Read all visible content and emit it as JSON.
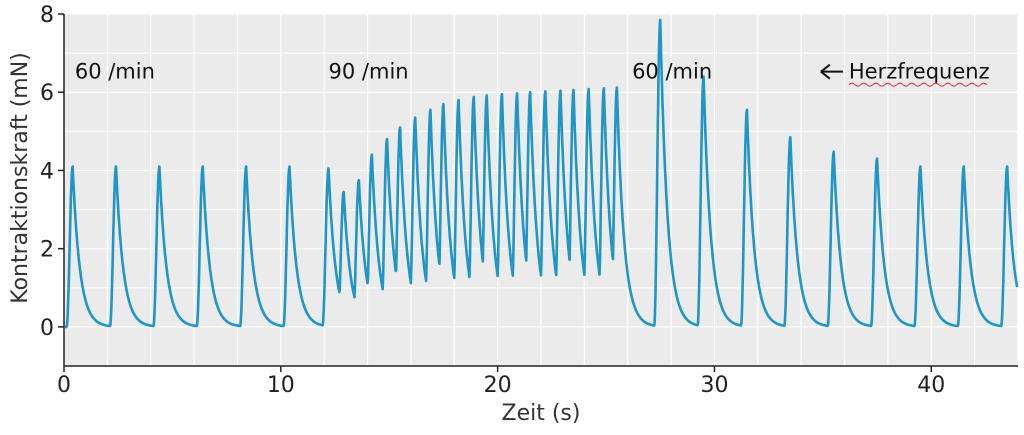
{
  "chart_data": {
    "type": "line",
    "xlabel": "Zeit (s)",
    "ylabel": "Kontraktionskraft (mN)",
    "xlim": [
      0,
      44
    ],
    "ylim": [
      -1,
      8
    ],
    "x_ticks": [
      0,
      10,
      20,
      30,
      40
    ],
    "y_ticks": [
      0,
      2,
      4,
      6,
      8
    ],
    "grid": true,
    "colors": {
      "line": "#1f95c8",
      "plot_bg": "#ebebeb",
      "grid": "#ffffff"
    },
    "annotations": [
      {
        "text": "60 /min",
        "x": 0.5,
        "y": 6.5
      },
      {
        "text": "90 /min",
        "x": 12.2,
        "y": 6.5
      },
      {
        "text": "60 /min",
        "x": 26.2,
        "y": 6.5
      },
      {
        "text": "Herzfrequenz",
        "x": 36.2,
        "y": 6.5,
        "arrow": "left-arrow-icon"
      }
    ],
    "series": [
      {
        "peaks": [
          {
            "t": 0.4,
            "f": 4.1
          },
          {
            "t": 2.4,
            "f": 4.1
          },
          {
            "t": 4.4,
            "f": 4.1
          },
          {
            "t": 6.4,
            "f": 4.1
          },
          {
            "t": 8.4,
            "f": 4.1
          },
          {
            "t": 10.4,
            "f": 4.1
          },
          {
            "t": 12.2,
            "f": 4.05
          },
          {
            "t": 12.9,
            "f": 3.45
          },
          {
            "t": 13.6,
            "f": 3.75
          },
          {
            "t": 14.2,
            "f": 4.4
          },
          {
            "t": 14.9,
            "f": 4.8
          },
          {
            "t": 15.5,
            "f": 5.1
          },
          {
            "t": 16.2,
            "f": 5.35
          },
          {
            "t": 16.9,
            "f": 5.55
          },
          {
            "t": 17.5,
            "f": 5.7
          },
          {
            "t": 18.2,
            "f": 5.8
          },
          {
            "t": 18.9,
            "f": 5.88
          },
          {
            "t": 19.5,
            "f": 5.92
          },
          {
            "t": 20.2,
            "f": 5.95
          },
          {
            "t": 20.9,
            "f": 5.97
          },
          {
            "t": 21.5,
            "f": 6.0
          },
          {
            "t": 22.2,
            "f": 6.02
          },
          {
            "t": 22.9,
            "f": 6.04
          },
          {
            "t": 23.5,
            "f": 6.06
          },
          {
            "t": 24.2,
            "f": 6.08
          },
          {
            "t": 24.9,
            "f": 6.1
          },
          {
            "t": 25.5,
            "f": 6.12
          },
          {
            "t": 27.5,
            "f": 7.85
          },
          {
            "t": 29.5,
            "f": 6.4
          },
          {
            "t": 31.5,
            "f": 5.55
          },
          {
            "t": 33.5,
            "f": 4.85
          },
          {
            "t": 35.5,
            "f": 4.48
          },
          {
            "t": 37.5,
            "f": 4.3
          },
          {
            "t": 39.5,
            "f": 4.1
          },
          {
            "t": 41.5,
            "f": 4.1
          },
          {
            "t": 43.5,
            "f": 4.1
          }
        ]
      }
    ]
  }
}
